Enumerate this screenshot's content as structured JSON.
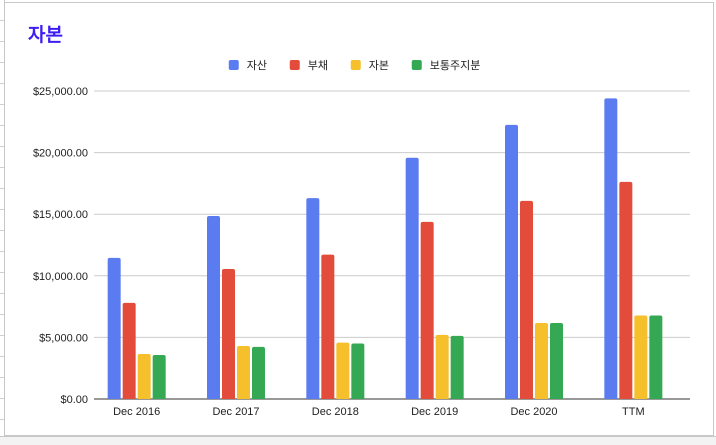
{
  "chart_data": {
    "type": "bar",
    "title": "자본",
    "categories": [
      "Dec 2016",
      "Dec 2017",
      "Dec 2018",
      "Dec 2019",
      "Dec 2020",
      "TTM"
    ],
    "series": [
      {
        "name": "자산",
        "color": "#5b7cf0",
        "values": [
          11450,
          14850,
          16300,
          19580,
          22250,
          24400
        ]
      },
      {
        "name": "부채",
        "color": "#e34c3a",
        "values": [
          7800,
          10550,
          11720,
          14380,
          16080,
          17620
        ]
      },
      {
        "name": "자본",
        "color": "#f5c02c",
        "values": [
          3650,
          4300,
          4580,
          5200,
          6170,
          6780
        ]
      },
      {
        "name": "보통주지분",
        "color": "#35a853",
        "values": [
          3570,
          4230,
          4500,
          5120,
          6170,
          6780
        ]
      }
    ],
    "ylim": [
      0,
      25000
    ],
    "yticks": [
      0,
      5000,
      10000,
      15000,
      20000,
      25000
    ],
    "ytick_labels": [
      "$0.00",
      "$5,000.00",
      "$10,000.00",
      "$15,000.00",
      "$20,000.00",
      "$25,000.00"
    ],
    "xlabel": "",
    "ylabel": "",
    "grid": true,
    "legend_position": "top-center"
  }
}
